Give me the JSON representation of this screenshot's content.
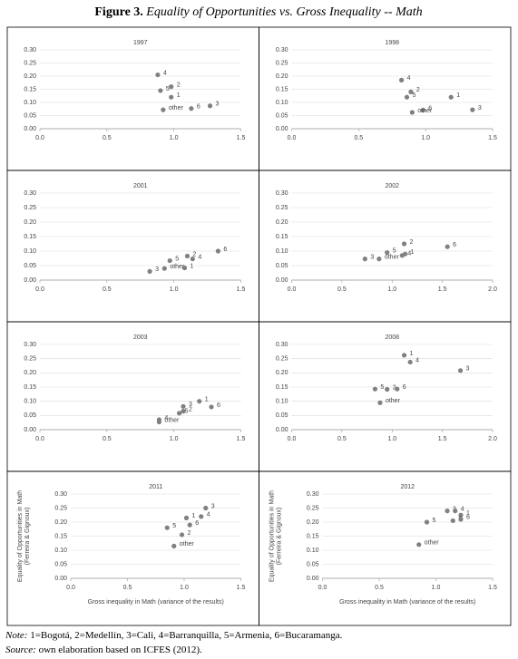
{
  "figure_label": "Figure 3.",
  "title": "Equality of Opportunities vs. Gross Inequality -- Math",
  "note_label": "Note:",
  "note": "1=Bogotá, 2=Medellín, 3=Cali, 4=Barranquilla, 5=Armenia, 6=Bucaramanga.",
  "source_label": "Source:",
  "source": "own elaboration based on ICFES (2012).",
  "chart_data": [
    {
      "type": "scatter",
      "title": "1997",
      "color": "#808080",
      "xlim": [
        0,
        1.5
      ],
      "ylim": [
        0,
        0.3
      ],
      "xticks": [
        {
          "value": 0,
          "label": "0.0"
        },
        {
          "value": 0.5,
          "label": "0.5"
        },
        {
          "value": 1,
          "label": "1.0"
        },
        {
          "value": 1.5,
          "label": "1.5"
        }
      ],
      "yticks": [
        {
          "value": 0,
          "label": "0.00"
        },
        {
          "value": 0.05,
          "label": "0.05"
        },
        {
          "value": 0.1,
          "label": "0.10"
        },
        {
          "value": 0.15,
          "label": "0.15"
        },
        {
          "value": 0.2,
          "label": "0.20"
        },
        {
          "value": 0.25,
          "label": "0.25"
        },
        {
          "value": 0.3,
          "label": "0.30"
        }
      ],
      "point_labels": [
        "1",
        "2",
        "3",
        "4",
        "5",
        "6",
        "other"
      ],
      "x": [
        0.98,
        0.98,
        1.27,
        0.88,
        0.9,
        1.13,
        0.92
      ],
      "values": [
        0.12,
        0.16,
        0.087,
        0.205,
        0.145,
        0.077,
        0.072
      ]
    },
    {
      "type": "scatter",
      "title": "1998",
      "color": "#808080",
      "xlim": [
        0,
        1.5
      ],
      "ylim": [
        0,
        0.3
      ],
      "xticks": [
        {
          "value": 0,
          "label": "0.0"
        },
        {
          "value": 0.5,
          "label": "0.5"
        },
        {
          "value": 1,
          "label": "1.0"
        },
        {
          "value": 1.5,
          "label": "1.5"
        }
      ],
      "yticks": [
        {
          "value": 0,
          "label": "0.00"
        },
        {
          "value": 0.05,
          "label": "0.05"
        },
        {
          "value": 0.1,
          "label": "0.10"
        },
        {
          "value": 0.15,
          "label": "0.15"
        },
        {
          "value": 0.2,
          "label": "0.20"
        },
        {
          "value": 0.25,
          "label": "0.25"
        },
        {
          "value": 0.3,
          "label": "0.30"
        }
      ],
      "point_labels": [
        "1",
        "2",
        "3",
        "4",
        "5",
        "6",
        "other"
      ],
      "x": [
        1.19,
        0.89,
        1.35,
        0.82,
        0.86,
        0.98,
        0.9
      ],
      "values": [
        0.12,
        0.14,
        0.072,
        0.185,
        0.12,
        0.07,
        0.062
      ]
    },
    {
      "type": "scatter",
      "title": "2001",
      "color": "#808080",
      "xlim": [
        0,
        1.5
      ],
      "ylim": [
        0,
        0.3
      ],
      "xticks": [
        {
          "value": 0,
          "label": "0.0"
        },
        {
          "value": 0.5,
          "label": "0.5"
        },
        {
          "value": 1,
          "label": "1.0"
        },
        {
          "value": 1.5,
          "label": "1.5"
        }
      ],
      "yticks": [
        {
          "value": 0,
          "label": "0.00"
        },
        {
          "value": 0.05,
          "label": "0.05"
        },
        {
          "value": 0.1,
          "label": "0.10"
        },
        {
          "value": 0.15,
          "label": "0.15"
        },
        {
          "value": 0.2,
          "label": "0.20"
        },
        {
          "value": 0.25,
          "label": "0.25"
        },
        {
          "value": 0.3,
          "label": "0.30"
        }
      ],
      "point_labels": [
        "1",
        "2",
        "3",
        "4",
        "5",
        "6",
        "other"
      ],
      "x": [
        1.08,
        1.1,
        0.82,
        1.14,
        0.97,
        1.33,
        0.93
      ],
      "values": [
        0.042,
        0.083,
        0.03,
        0.073,
        0.067,
        0.1,
        0.04
      ]
    },
    {
      "type": "scatter",
      "title": "2002",
      "color": "#808080",
      "xlim": [
        0,
        2
      ],
      "ylim": [
        0,
        0.3
      ],
      "xticks": [
        {
          "value": 0,
          "label": "0.0"
        },
        {
          "value": 0.5,
          "label": "0.5"
        },
        {
          "value": 1,
          "label": "1.0"
        },
        {
          "value": 1.5,
          "label": "1.5"
        },
        {
          "value": 2,
          "label": "2.0"
        }
      ],
      "yticks": [
        {
          "value": 0,
          "label": "0.00"
        },
        {
          "value": 0.05,
          "label": "0.05"
        },
        {
          "value": 0.1,
          "label": "0.10"
        },
        {
          "value": 0.15,
          "label": "0.15"
        },
        {
          "value": 0.2,
          "label": "0.20"
        },
        {
          "value": 0.25,
          "label": "0.25"
        },
        {
          "value": 0.3,
          "label": "0.30"
        }
      ],
      "point_labels": [
        "1",
        "2",
        "3",
        "4",
        "5",
        "6",
        "other"
      ],
      "x": [
        1.13,
        1.12,
        0.73,
        1.1,
        0.95,
        1.55,
        0.87
      ],
      "values": [
        0.09,
        0.125,
        0.073,
        0.085,
        0.095,
        0.115,
        0.073
      ]
    },
    {
      "type": "scatter",
      "title": "2003",
      "color": "#808080",
      "xlim": [
        0,
        1.5
      ],
      "ylim": [
        0,
        0.3
      ],
      "xticks": [
        {
          "value": 0,
          "label": "0.0"
        },
        {
          "value": 0.5,
          "label": "0.5"
        },
        {
          "value": 1,
          "label": "1.0"
        },
        {
          "value": 1.5,
          "label": "1.5"
        }
      ],
      "yticks": [
        {
          "value": 0,
          "label": "0.00"
        },
        {
          "value": 0.05,
          "label": "0.05"
        },
        {
          "value": 0.1,
          "label": "0.10"
        },
        {
          "value": 0.15,
          "label": "0.15"
        },
        {
          "value": 0.2,
          "label": "0.20"
        },
        {
          "value": 0.25,
          "label": "0.25"
        },
        {
          "value": 0.3,
          "label": "0.30"
        }
      ],
      "point_labels": [
        "1",
        "2",
        "3",
        "4",
        "5",
        "6",
        "other"
      ],
      "x": [
        1.19,
        1.07,
        1.07,
        0.89,
        1.04,
        1.28,
        0.89
      ],
      "values": [
        0.1,
        0.065,
        0.082,
        0.035,
        0.058,
        0.08,
        0.027
      ]
    },
    {
      "type": "scatter",
      "title": "2008",
      "color": "#808080",
      "xlim": [
        0,
        2
      ],
      "ylim": [
        0,
        0.3
      ],
      "xticks": [
        {
          "value": 0,
          "label": "0.0"
        },
        {
          "value": 0.5,
          "label": "0.5"
        },
        {
          "value": 1,
          "label": "1.0"
        },
        {
          "value": 1.5,
          "label": "1.5"
        },
        {
          "value": 2,
          "label": "2.0"
        }
      ],
      "yticks": [
        {
          "value": 0,
          "label": "0.00"
        },
        {
          "value": 0.05,
          "label": "0.05"
        },
        {
          "value": 0.1,
          "label": "0.10"
        },
        {
          "value": 0.15,
          "label": "0.15"
        },
        {
          "value": 0.2,
          "label": "0.20"
        },
        {
          "value": 0.25,
          "label": "0.25"
        },
        {
          "value": 0.3,
          "label": "0.30"
        }
      ],
      "point_labels": [
        "1",
        "2",
        "3",
        "4",
        "5",
        "6",
        "other"
      ],
      "x": [
        1.12,
        0.95,
        1.68,
        1.18,
        0.83,
        1.05,
        0.88
      ],
      "values": [
        0.262,
        0.142,
        0.208,
        0.238,
        0.143,
        0.143,
        0.095
      ]
    },
    {
      "type": "scatter",
      "title": "2011",
      "color": "#808080",
      "xlim": [
        0,
        1.5
      ],
      "ylim": [
        0,
        0.3
      ],
      "xlabel": "Gross inequality in Math (variance of the results)",
      "ylabel": [
        "Equality of Opportunities in Math",
        "(Ferreira & Gignoux)"
      ],
      "xticks": [
        {
          "value": 0,
          "label": "0.0"
        },
        {
          "value": 0.5,
          "label": "0.5"
        },
        {
          "value": 1,
          "label": "1.0"
        },
        {
          "value": 1.5,
          "label": "1.5"
        }
      ],
      "yticks": [
        {
          "value": 0,
          "label": "0.00"
        },
        {
          "value": 0.05,
          "label": "0.05"
        },
        {
          "value": 0.1,
          "label": "0.10"
        },
        {
          "value": 0.15,
          "label": "0.15"
        },
        {
          "value": 0.2,
          "label": "0.20"
        },
        {
          "value": 0.25,
          "label": "0.25"
        },
        {
          "value": 0.3,
          "label": "0.30"
        }
      ],
      "point_labels": [
        "1",
        "2",
        "3",
        "4",
        "5",
        "6",
        "other"
      ],
      "x": [
        1.02,
        0.98,
        1.19,
        1.15,
        0.85,
        1.05,
        0.91
      ],
      "values": [
        0.215,
        0.155,
        0.25,
        0.22,
        0.18,
        0.19,
        0.115
      ]
    },
    {
      "type": "scatter",
      "title": "2012",
      "color": "#808080",
      "xlim": [
        0,
        1.5
      ],
      "ylim": [
        0,
        0.3
      ],
      "xlabel": "Gross inequality in Math (variance of the results)",
      "ylabel": [
        "Equality of Opportunities in Math",
        "(Ferreira & Gignoux)"
      ],
      "xticks": [
        {
          "value": 0,
          "label": "0.0"
        },
        {
          "value": 0.5,
          "label": "0.5"
        },
        {
          "value": 1,
          "label": "1.0"
        },
        {
          "value": 1.5,
          "label": "1.5"
        }
      ],
      "yticks": [
        {
          "value": 0,
          "label": "0.00"
        },
        {
          "value": 0.05,
          "label": "0.05"
        },
        {
          "value": 0.1,
          "label": "0.10"
        },
        {
          "value": 0.15,
          "label": "0.15"
        },
        {
          "value": 0.2,
          "label": "0.20"
        },
        {
          "value": 0.25,
          "label": "0.25"
        },
        {
          "value": 0.3,
          "label": "0.30"
        }
      ],
      "point_labels": [
        "1",
        "2",
        "3",
        "4",
        "5",
        "6",
        "other"
      ],
      "x": [
        1.22,
        1.15,
        1.1,
        1.17,
        0.92,
        1.22,
        0.85
      ],
      "values": [
        0.225,
        0.205,
        0.24,
        0.24,
        0.2,
        0.21,
        0.12
      ]
    }
  ]
}
